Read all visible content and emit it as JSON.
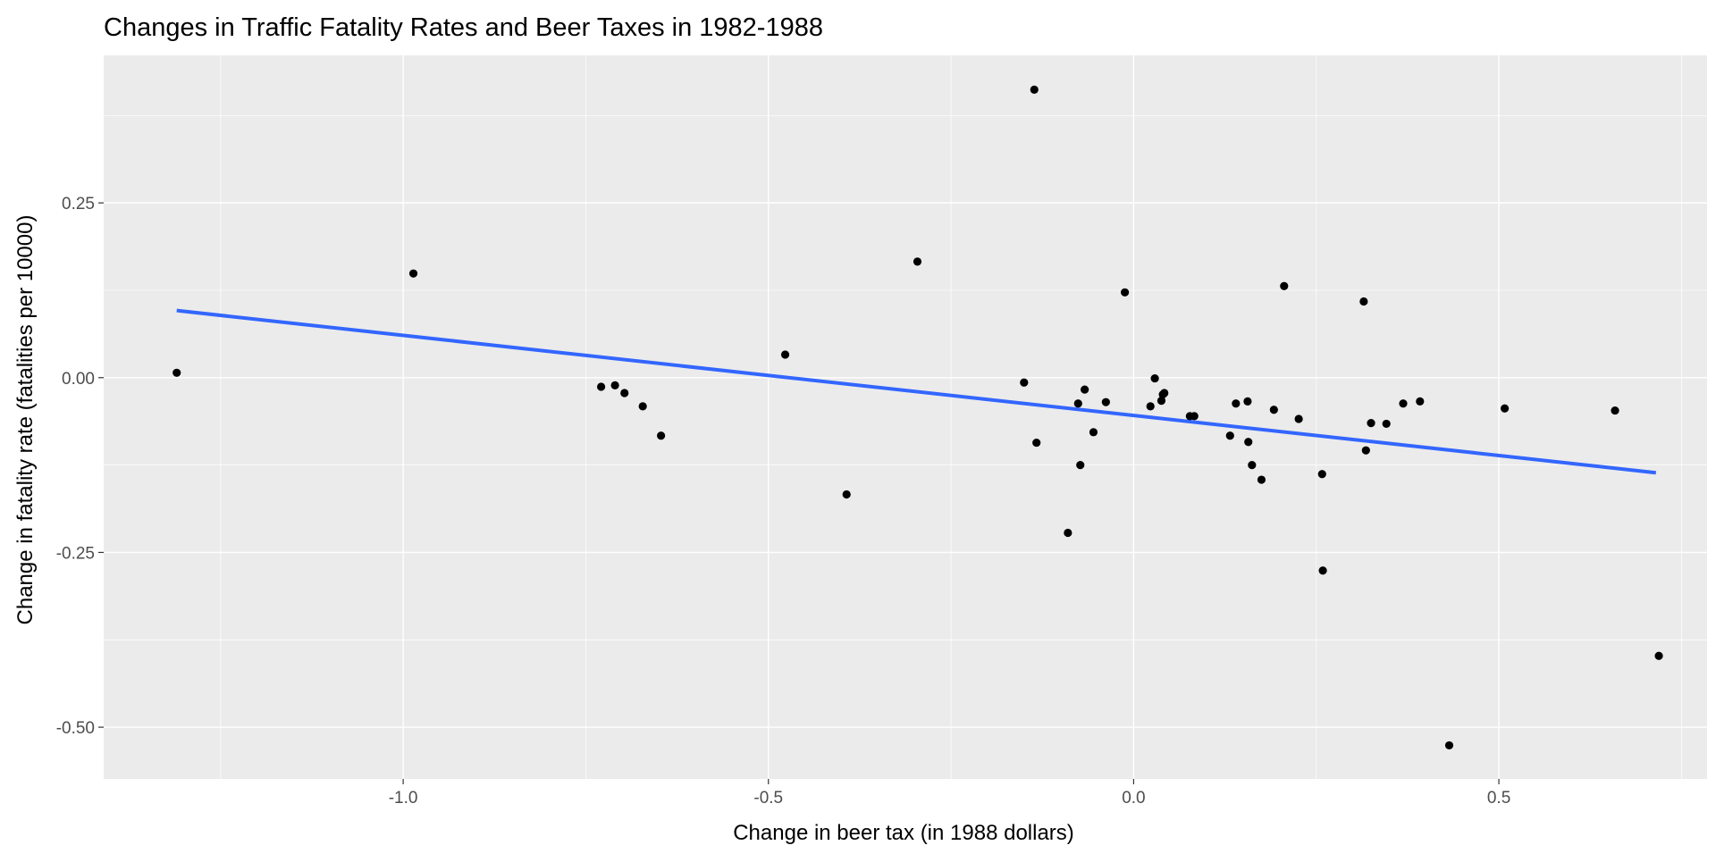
{
  "chart_data": {
    "type": "scatter",
    "title": "Changes in Traffic Fatality Rates and Beer Taxes in 1982-1988",
    "xlabel": "Change in beer tax (in 1988 dollars)",
    "ylabel": "Change in fatality rate (fatalities per 10000)",
    "xlim": [
      -1.41,
      0.785
    ],
    "ylim": [
      -0.574,
      0.461
    ],
    "x_ticks": [
      -1.0,
      -0.5,
      0.0,
      0.5
    ],
    "x_tick_labels": [
      "-1.0",
      "-0.5",
      "0.0",
      "0.5"
    ],
    "x_minor_ticks": [
      -1.25,
      -0.75,
      -0.25,
      0.25,
      0.75
    ],
    "y_ticks": [
      0.25,
      0.0,
      -0.25,
      -0.5
    ],
    "y_tick_labels": [
      "0.25",
      "0.00",
      "-0.25",
      "-0.50"
    ],
    "y_minor_ticks": [
      0.375,
      0.125,
      -0.125,
      -0.375
    ],
    "grid": true,
    "background": "#ebebeb",
    "point_color": "#000000",
    "fit_line": {
      "method": "linear",
      "color": "#3366ff",
      "x_range": [
        -1.31,
        0.715
      ],
      "y_range": [
        0.096,
        -0.136
      ]
    },
    "points": [
      {
        "x": -1.31,
        "y": 0.007
      },
      {
        "x": -0.986,
        "y": 0.149
      },
      {
        "x": -0.729,
        "y": -0.013
      },
      {
        "x": -0.71,
        "y": -0.011
      },
      {
        "x": -0.697,
        "y": -0.022
      },
      {
        "x": -0.672,
        "y": -0.041
      },
      {
        "x": -0.647,
        "y": -0.083
      },
      {
        "x": -0.477,
        "y": 0.033
      },
      {
        "x": -0.393,
        "y": -0.167
      },
      {
        "x": -0.296,
        "y": 0.166
      },
      {
        "x": -0.15,
        "y": -0.007
      },
      {
        "x": -0.136,
        "y": 0.412
      },
      {
        "x": -0.133,
        "y": -0.093
      },
      {
        "x": -0.09,
        "y": -0.222
      },
      {
        "x": -0.076,
        "y": -0.037
      },
      {
        "x": -0.073,
        "y": -0.125
      },
      {
        "x": -0.067,
        "y": -0.017
      },
      {
        "x": -0.055,
        "y": -0.078
      },
      {
        "x": -0.038,
        "y": -0.035
      },
      {
        "x": -0.012,
        "y": 0.122
      },
      {
        "x": 0.023,
        "y": -0.041
      },
      {
        "x": 0.029,
        "y": -0.001
      },
      {
        "x": 0.038,
        "y": -0.033
      },
      {
        "x": 0.04,
        "y": -0.024
      },
      {
        "x": 0.042,
        "y": -0.022
      },
      {
        "x": 0.077,
        "y": -0.055
      },
      {
        "x": 0.083,
        "y": -0.055
      },
      {
        "x": 0.132,
        "y": -0.083
      },
      {
        "x": 0.14,
        "y": -0.037
      },
      {
        "x": 0.156,
        "y": -0.034
      },
      {
        "x": 0.157,
        "y": -0.092
      },
      {
        "x": 0.162,
        "y": -0.125
      },
      {
        "x": 0.175,
        "y": -0.146
      },
      {
        "x": 0.192,
        "y": -0.046
      },
      {
        "x": 0.206,
        "y": 0.131
      },
      {
        "x": 0.226,
        "y": -0.059
      },
      {
        "x": 0.258,
        "y": -0.138
      },
      {
        "x": 0.259,
        "y": -0.276
      },
      {
        "x": 0.315,
        "y": 0.109
      },
      {
        "x": 0.318,
        "y": -0.104
      },
      {
        "x": 0.325,
        "y": -0.065
      },
      {
        "x": 0.346,
        "y": -0.066
      },
      {
        "x": 0.369,
        "y": -0.037
      },
      {
        "x": 0.392,
        "y": -0.034
      },
      {
        "x": 0.432,
        "y": -0.526
      },
      {
        "x": 0.508,
        "y": -0.044
      },
      {
        "x": 0.659,
        "y": -0.047
      },
      {
        "x": 0.719,
        "y": -0.398
      }
    ]
  }
}
